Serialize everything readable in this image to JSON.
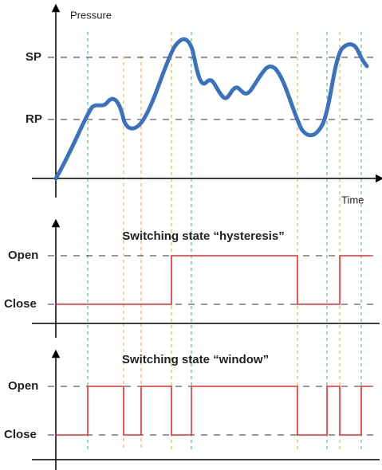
{
  "pressure_chart": {
    "y_label": "Pressure",
    "x_label": "Time",
    "sp_label": "SP",
    "rp_label": "RP"
  },
  "hysteresis_chart": {
    "title": "Switching state “hysteresis”",
    "open_label": "Open",
    "close_label": "Close"
  },
  "window_chart": {
    "title": "Switching state “window”",
    "open_label": "Open",
    "close_label": "Close"
  }
}
